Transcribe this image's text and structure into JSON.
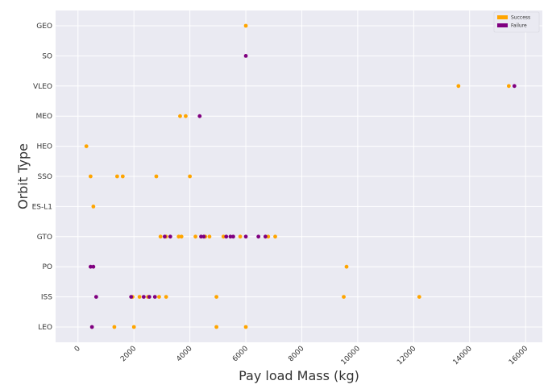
{
  "chart_data": {
    "type": "scatter",
    "title": "",
    "xlabel": "Pay load Mass (kg)",
    "ylabel": "Orbit Type",
    "xlim": [
      -800,
      16600
    ],
    "xticks": [
      0,
      2000,
      4000,
      6000,
      8000,
      10000,
      12000,
      14000,
      16000
    ],
    "categories": [
      "LEO",
      "ISS",
      "PO",
      "GTO",
      "ES-L1",
      "SSO",
      "HEO",
      "MEO",
      "VLEO",
      "SO",
      "GEO"
    ],
    "grid": true,
    "legend_position": "top-right",
    "series": [
      {
        "name": "Success",
        "color": "#FFA500",
        "points": [
          {
            "x": 6000,
            "y": "GEO"
          },
          {
            "x": 13600,
            "y": "VLEO"
          },
          {
            "x": 15400,
            "y": "VLEO"
          },
          {
            "x": 3650,
            "y": "MEO"
          },
          {
            "x": 3850,
            "y": "MEO"
          },
          {
            "x": 300,
            "y": "HEO"
          },
          {
            "x": 450,
            "y": "SSO"
          },
          {
            "x": 1400,
            "y": "SSO"
          },
          {
            "x": 1600,
            "y": "SSO"
          },
          {
            "x": 2800,
            "y": "SSO"
          },
          {
            "x": 4000,
            "y": "SSO"
          },
          {
            "x": 550,
            "y": "ES-L1"
          },
          {
            "x": 2950,
            "y": "GTO"
          },
          {
            "x": 3150,
            "y": "GTO"
          },
          {
            "x": 3600,
            "y": "GTO"
          },
          {
            "x": 3700,
            "y": "GTO"
          },
          {
            "x": 4200,
            "y": "GTO"
          },
          {
            "x": 4550,
            "y": "GTO"
          },
          {
            "x": 4700,
            "y": "GTO"
          },
          {
            "x": 5200,
            "y": "GTO"
          },
          {
            "x": 5800,
            "y": "GTO"
          },
          {
            "x": 6800,
            "y": "GTO"
          },
          {
            "x": 7050,
            "y": "GTO"
          },
          {
            "x": 9600,
            "y": "PO"
          },
          {
            "x": 1950,
            "y": "ISS"
          },
          {
            "x": 2200,
            "y": "ISS"
          },
          {
            "x": 2500,
            "y": "ISS"
          },
          {
            "x": 2900,
            "y": "ISS"
          },
          {
            "x": 3150,
            "y": "ISS"
          },
          {
            "x": 4950,
            "y": "ISS"
          },
          {
            "x": 9500,
            "y": "ISS"
          },
          {
            "x": 12200,
            "y": "ISS"
          },
          {
            "x": 1300,
            "y": "LEO"
          },
          {
            "x": 2000,
            "y": "LEO"
          },
          {
            "x": 4950,
            "y": "LEO"
          },
          {
            "x": 6000,
            "y": "LEO"
          }
        ]
      },
      {
        "name": "Failure",
        "color": "#800080",
        "points": [
          {
            "x": 6000,
            "y": "SO"
          },
          {
            "x": 15600,
            "y": "VLEO"
          },
          {
            "x": 4350,
            "y": "MEO"
          },
          {
            "x": 3100,
            "y": "GTO"
          },
          {
            "x": 3300,
            "y": "GTO"
          },
          {
            "x": 4400,
            "y": "GTO"
          },
          {
            "x": 4500,
            "y": "GTO"
          },
          {
            "x": 5300,
            "y": "GTO"
          },
          {
            "x": 5450,
            "y": "GTO"
          },
          {
            "x": 5550,
            "y": "GTO"
          },
          {
            "x": 6000,
            "y": "GTO"
          },
          {
            "x": 6450,
            "y": "GTO"
          },
          {
            "x": 6700,
            "y": "GTO"
          },
          {
            "x": 450,
            "y": "PO"
          },
          {
            "x": 550,
            "y": "PO"
          },
          {
            "x": 650,
            "y": "ISS"
          },
          {
            "x": 1900,
            "y": "ISS"
          },
          {
            "x": 2350,
            "y": "ISS"
          },
          {
            "x": 2550,
            "y": "ISS"
          },
          {
            "x": 2750,
            "y": "ISS"
          },
          {
            "x": 500,
            "y": "LEO"
          }
        ]
      }
    ]
  }
}
